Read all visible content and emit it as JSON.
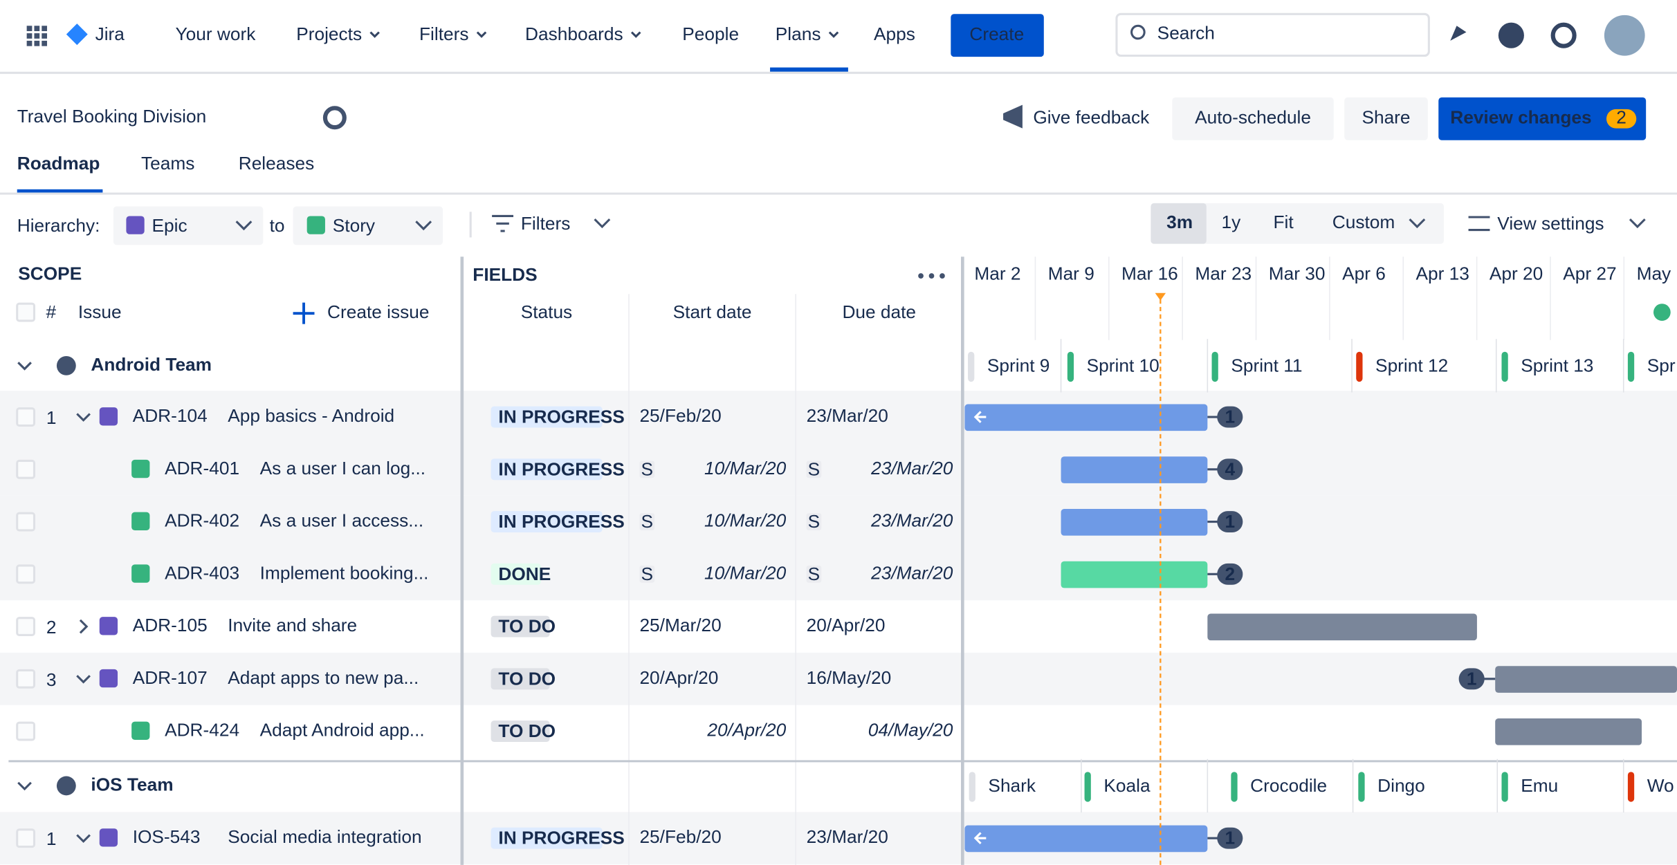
{
  "nav": {
    "product": "Jira",
    "items": [
      "Your work",
      "Projects",
      "Filters",
      "Dashboards",
      "People",
      "Plans",
      "Apps"
    ],
    "create": "Create",
    "search": "Search"
  },
  "header": {
    "title": "Travel Booking Division",
    "feedback": "Give feedback",
    "buttons": [
      "Auto-schedule",
      "Share"
    ],
    "review": "Review changes",
    "review_count": 2
  },
  "tabs": [
    "Roadmap",
    "Teams",
    "Releases"
  ],
  "toolbar": {
    "hierarchy_label": "Hierarchy:",
    "from": "Epic",
    "to_word": "to",
    "to": "Story",
    "filters": "Filters",
    "ranges": [
      "3m",
      "1y",
      "Fit",
      "Custom"
    ],
    "view_settings": "View settings"
  },
  "scope": {
    "label": "SCOPE",
    "hash": "#",
    "issue": "Issue",
    "create_issue": "Create issue"
  },
  "fields": {
    "label": "FIELDS",
    "columns": [
      "Status",
      "Start date",
      "Due date"
    ]
  },
  "timeline": {
    "weeks": [
      "Mar 2",
      "Mar 9",
      "Mar 16",
      "Mar 23",
      "Mar 30",
      "Apr 6",
      "Apr 13",
      "Apr 20",
      "Apr 27",
      "May"
    ]
  },
  "groups": [
    {
      "name": "Android Team",
      "sprints": [
        "Sprint 9",
        "Sprint 10",
        "Sprint 11",
        "Sprint 12",
        "Sprint 13",
        "Spr"
      ],
      "rows": [
        {
          "rank": 1,
          "key": "ADR-104",
          "summary": "App basics - Android",
          "status": "IN PROGRESS",
          "start": "25/Feb/20",
          "due": "23/Mar/20",
          "count": 1
        },
        {
          "key": "ADR-401",
          "summary": "As a user I can log...",
          "status": "IN PROGRESS",
          "badge": "S",
          "start": "10/Mar/20",
          "due": "23/Mar/20",
          "count": 4
        },
        {
          "key": "ADR-402",
          "summary": "As a user I access...",
          "status": "IN PROGRESS",
          "badge": "S",
          "start": "10/Mar/20",
          "due": "23/Mar/20",
          "count": 1
        },
        {
          "key": "ADR-403",
          "summary": "Implement booking...",
          "status": "DONE",
          "badge": "S",
          "start": "10/Mar/20",
          "due": "23/Mar/20",
          "count": 2
        },
        {
          "rank": 2,
          "key": "ADR-105",
          "summary": "Invite and share",
          "status": "TO DO",
          "start": "25/Mar/20",
          "due": "20/Apr/20"
        },
        {
          "rank": 3,
          "key": "ADR-107",
          "summary": "Adapt apps to new pa...",
          "status": "TO DO",
          "start": "20/Apr/20",
          "due": "16/May/20",
          "count": 1
        },
        {
          "key": "ADR-424",
          "summary": "Adapt Android app...",
          "status": "TO DO",
          "start": "20/Apr/20",
          "due": "04/May/20"
        }
      ]
    },
    {
      "name": "iOS Team",
      "sprints": [
        "Shark",
        "Koala",
        "Crocodile",
        "Dingo",
        "Emu",
        "Wo"
      ],
      "rows": [
        {
          "rank": 1,
          "key": "IOS-543",
          "summary": "Social media integration",
          "status": "IN PROGRESS",
          "start": "25/Feb/20",
          "due": "23/Mar/20",
          "count": 1
        }
      ]
    }
  ]
}
